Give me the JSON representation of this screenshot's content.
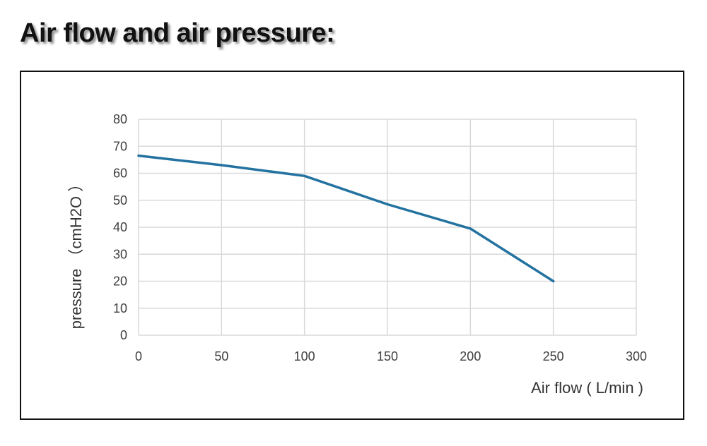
{
  "page": {
    "heading": "Air flow and air pressure:"
  },
  "colors": {
    "line": "#2372a0",
    "grid": "#d9d9d9",
    "frame": "#111111"
  },
  "chart_data": {
    "type": "line",
    "title": "",
    "xlabel": "Air flow ( L/min )",
    "ylabel": "pressure （cmH2O ）",
    "xlim": [
      0,
      300
    ],
    "ylim": [
      0,
      80
    ],
    "xticks": [
      "0",
      "50",
      "100",
      "150",
      "200",
      "250",
      "300"
    ],
    "yticks": [
      "0",
      "10",
      "20",
      "30",
      "40",
      "50",
      "60",
      "70",
      "80"
    ],
    "grid": true,
    "legend": "none",
    "series": [
      {
        "x": [
          0,
          50,
          100,
          150,
          200,
          250
        ],
        "values": [
          66.5,
          63,
          59,
          48.5,
          39.5,
          20
        ]
      }
    ]
  }
}
